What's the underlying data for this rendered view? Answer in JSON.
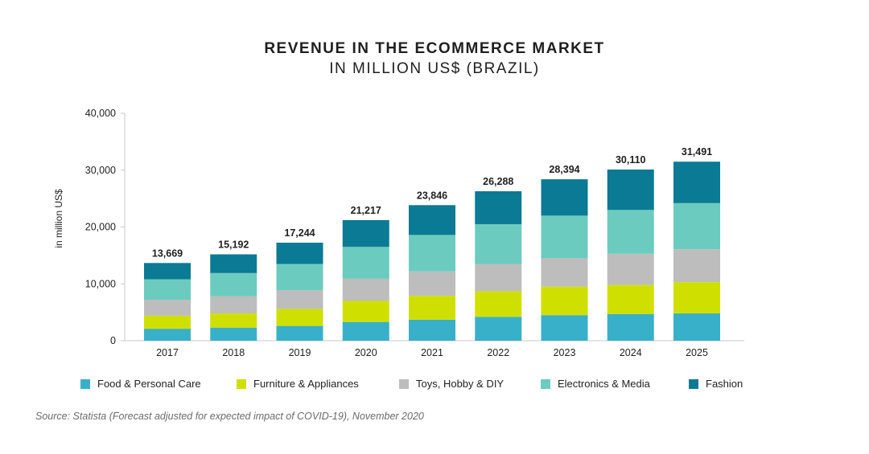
{
  "title": "REVENUE IN THE ECOMMERCE MARKET",
  "subtitle": "IN MILLION US$ (BRAZIL)",
  "source": "Source: Statista (Forecast adjusted for expected impact of COVID-19), November 2020",
  "chart_data": {
    "type": "bar",
    "stacked": true,
    "title": "REVENUE IN THE ECOMMERCE MARKET",
    "subtitle": "IN MILLION US$ (BRAZIL)",
    "xlabel": "",
    "ylabel": "in million US$",
    "ylim": [
      0,
      40000
    ],
    "yticks": [
      0,
      10000,
      20000,
      30000,
      40000
    ],
    "ytick_labels": [
      "0",
      "10,000",
      "20,000",
      "30,000",
      "40,000"
    ],
    "grid": false,
    "legend_position": "bottom",
    "categories": [
      "2017",
      "2018",
      "2019",
      "2020",
      "2021",
      "2022",
      "2023",
      "2024",
      "2025"
    ],
    "totals": [
      13669,
      15192,
      17244,
      21217,
      23846,
      26288,
      28394,
      30110,
      31491
    ],
    "total_labels": [
      "13,669",
      "15,192",
      "17,244",
      "21,217",
      "23,846",
      "26,288",
      "28,394",
      "30,110",
      "31,491"
    ],
    "series": [
      {
        "name": "Food & Personal Care",
        "color": "#39b0c9",
        "values": [
          2100,
          2300,
          2600,
          3300,
          3700,
          4200,
          4500,
          4700,
          4800
        ]
      },
      {
        "name": "Furniture & Appliances",
        "color": "#cfe000",
        "values": [
          2300,
          2500,
          3000,
          3700,
          4200,
          4500,
          5000,
          5100,
          5500
        ]
      },
      {
        "name": "Toys, Hobby & DIY",
        "color": "#bdbdbd",
        "values": [
          2800,
          3000,
          3300,
          3900,
          4300,
          4800,
          5000,
          5500,
          5800
        ]
      },
      {
        "name": "Electronics & Media",
        "color": "#6ccbbf",
        "values": [
          3600,
          4100,
          4600,
          5600,
          6400,
          7000,
          7500,
          7700,
          8100
        ]
      },
      {
        "name": "Fashion",
        "color": "#0b7a94",
        "values": [
          2869,
          3292,
          3744,
          4717,
          5246,
          5788,
          6394,
          7110,
          7291
        ]
      }
    ]
  }
}
